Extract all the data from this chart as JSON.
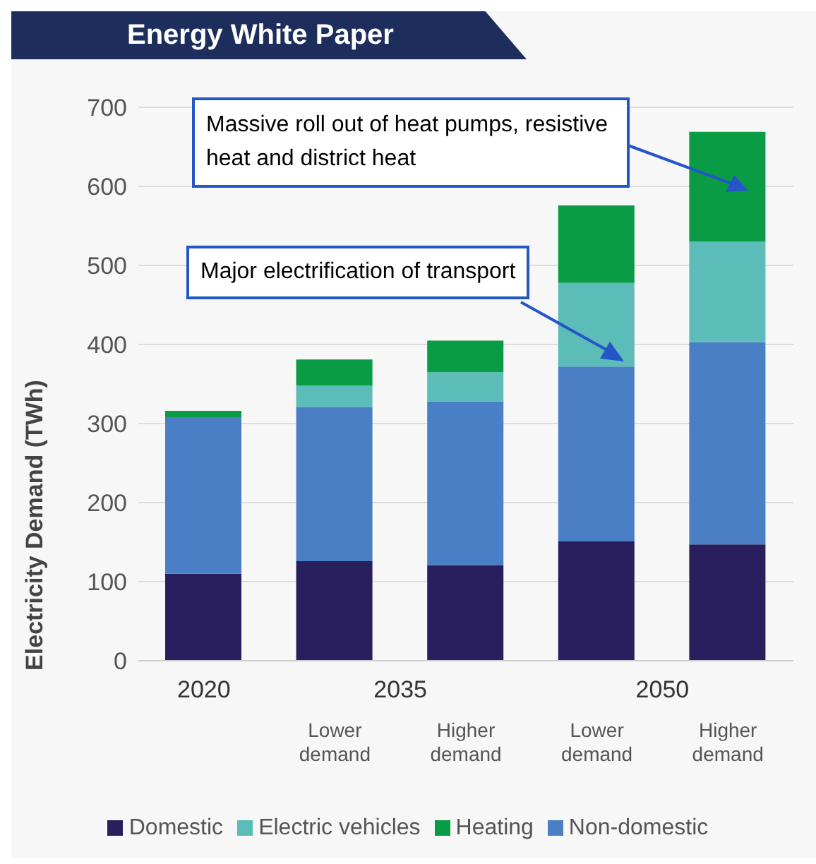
{
  "chart_data": {
    "type": "bar",
    "title": "Energy White Paper",
    "ylabel": "Electricity Demand (TWh)",
    "categories": [
      "2020",
      "Lower demand",
      "Higher demand",
      "Lower demand",
      "Higher demand"
    ],
    "stacked": true,
    "ylim": [
      0,
      700
    ],
    "yticks": [
      0,
      100,
      200,
      300,
      400,
      500,
      600,
      700
    ],
    "grid": "y",
    "legend": "bottom",
    "series": [
      {
        "name": "Domestic",
        "color": "#2a1f5e",
        "values": [
          110,
          126,
          121,
          151,
          147
        ]
      },
      {
        "name": "Non-domestic",
        "color": "#4a7fc6",
        "values": [
          198,
          195,
          207,
          221,
          256
        ]
      },
      {
        "name": "Electric vehicles",
        "color": "#5bbcb8",
        "values": [
          0,
          27,
          37,
          106,
          127
        ]
      },
      {
        "name": "Heating",
        "color": "#0a9b45",
        "values": [
          8,
          33,
          40,
          98,
          139
        ]
      }
    ],
    "annotations": [
      "Massive roll out of heat pumps, resistive heat and district heat",
      "Major electrification of transport",
      "2035",
      "2050"
    ]
  }
}
